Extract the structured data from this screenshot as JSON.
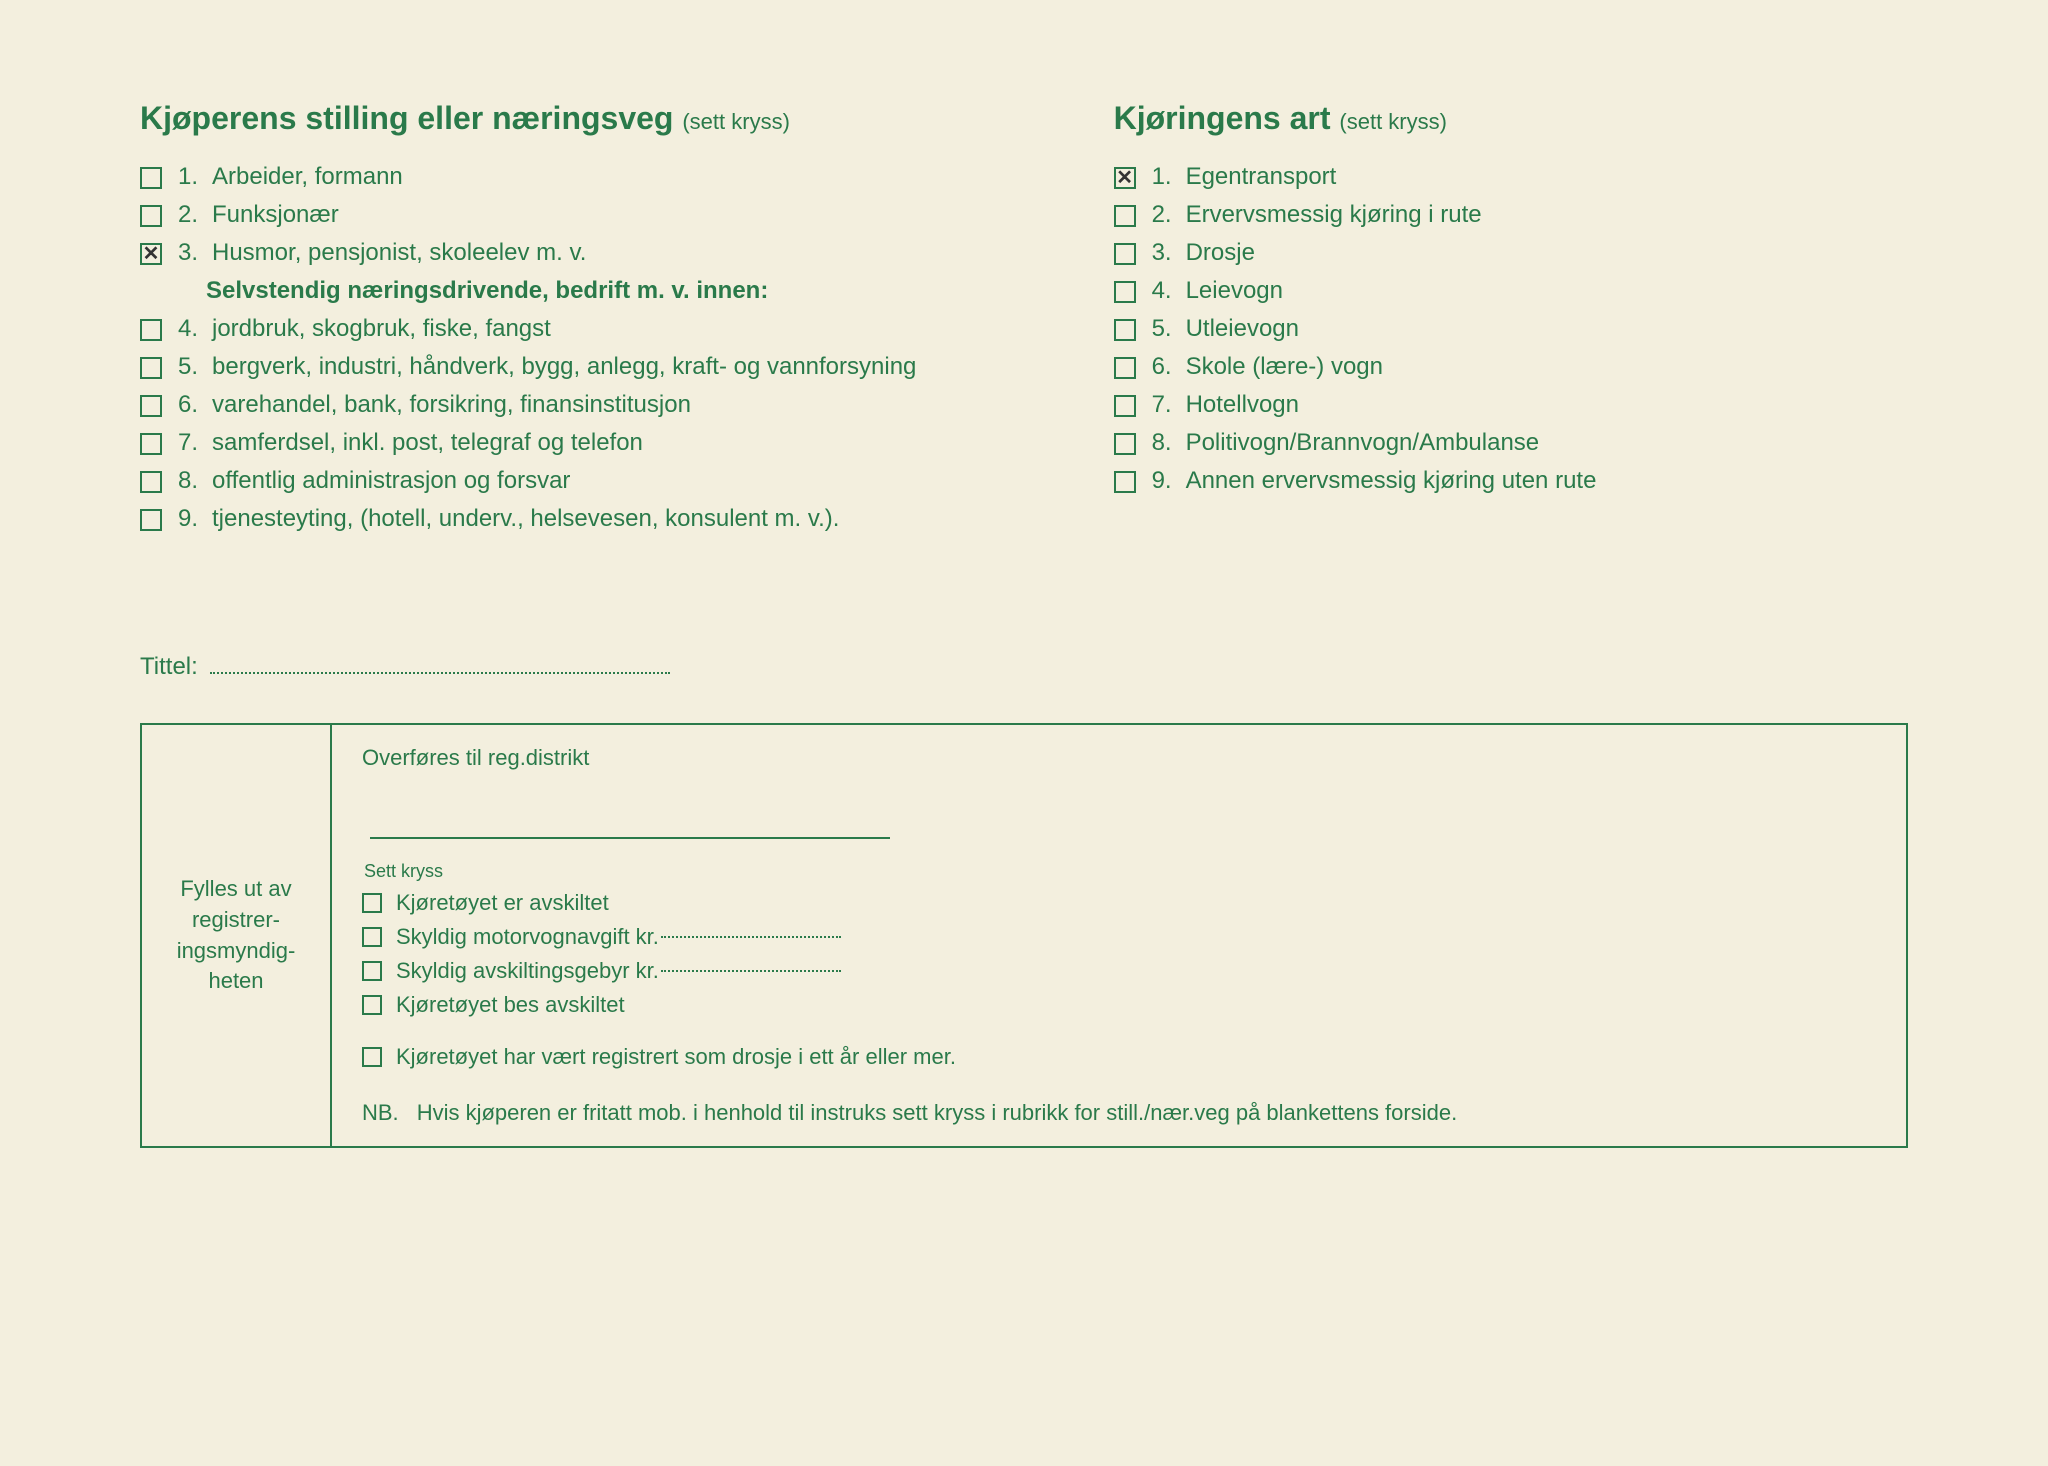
{
  "colors": {
    "ink": "#2a7a4a",
    "paper": "#f3efde",
    "pen_mark": "#333333"
  },
  "left": {
    "heading": "Kjøperens stilling eller næringsveg",
    "heading_suffix": "(sett kryss)",
    "items_top": [
      {
        "num": "1.",
        "label": "Arbeider, formann",
        "checked": false
      },
      {
        "num": "2.",
        "label": "Funksjonær",
        "checked": false
      },
      {
        "num": "3.",
        "label": "Husmor, pensjonist, skoleelev m. v.",
        "checked": true
      }
    ],
    "sub_heading": "Selvstendig næringsdrivende, bedrift m. v. innen:",
    "items_bottom": [
      {
        "num": "4.",
        "label": "jordbruk, skogbruk, fiske, fangst",
        "checked": false
      },
      {
        "num": "5.",
        "label": "bergverk, industri, håndverk, bygg, anlegg, kraft- og vannforsyning",
        "checked": false
      },
      {
        "num": "6.",
        "label": "varehandel, bank, forsikring, finansinstitusjon",
        "checked": false
      },
      {
        "num": "7.",
        "label": "samferdsel, inkl. post, telegraf og telefon",
        "checked": false
      },
      {
        "num": "8.",
        "label": "offentlig administrasjon og forsvar",
        "checked": false
      },
      {
        "num": "9.",
        "label": "tjenesteyting, (hotell, underv., helsevesen, konsulent m. v.).",
        "checked": false
      }
    ]
  },
  "right": {
    "heading": "Kjøringens art",
    "heading_suffix": "(sett kryss)",
    "items": [
      {
        "num": "1.",
        "label": "Egentransport",
        "checked": true
      },
      {
        "num": "2.",
        "label": "Ervervsmessig kjøring i rute",
        "checked": false
      },
      {
        "num": "3.",
        "label": "Drosje",
        "checked": false
      },
      {
        "num": "4.",
        "label": "Leievogn",
        "checked": false
      },
      {
        "num": "5.",
        "label": "Utleievogn",
        "checked": false
      },
      {
        "num": "6.",
        "label": "Skole (lære-) vogn",
        "checked": false
      },
      {
        "num": "7.",
        "label": "Hotellvogn",
        "checked": false
      },
      {
        "num": "8.",
        "label": "Politivogn/Brannvogn/Ambulanse",
        "checked": false
      },
      {
        "num": "9.",
        "label": "Annen ervervsmessig kjøring uten rute",
        "checked": false
      }
    ]
  },
  "tittel_label": "Tittel:",
  "box": {
    "left_text": "Fylles ut av registrer-ingsmyndig-heten",
    "transfer_label": "Overføres til reg.distrikt",
    "sett_kryss": "Sett kryss",
    "items": [
      {
        "label": "Kjøretøyet er avskiltet",
        "has_kr": false
      },
      {
        "label": "Skyldig motorvognavgift kr.",
        "has_kr": true
      },
      {
        "label": "Skyldig avskiltingsgebyr kr.",
        "has_kr": true
      },
      {
        "label": "Kjøretøyet bes avskiltet",
        "has_kr": false
      }
    ],
    "drosje_item": {
      "label": "Kjøretøyet har vært registrert som drosje i ett år eller mer."
    },
    "nb_label": "NB.",
    "nb_text": "Hvis kjøperen er fritatt mob. i henhold til instruks sett kryss i rubrikk for still./nær.veg på blankettens forside."
  }
}
